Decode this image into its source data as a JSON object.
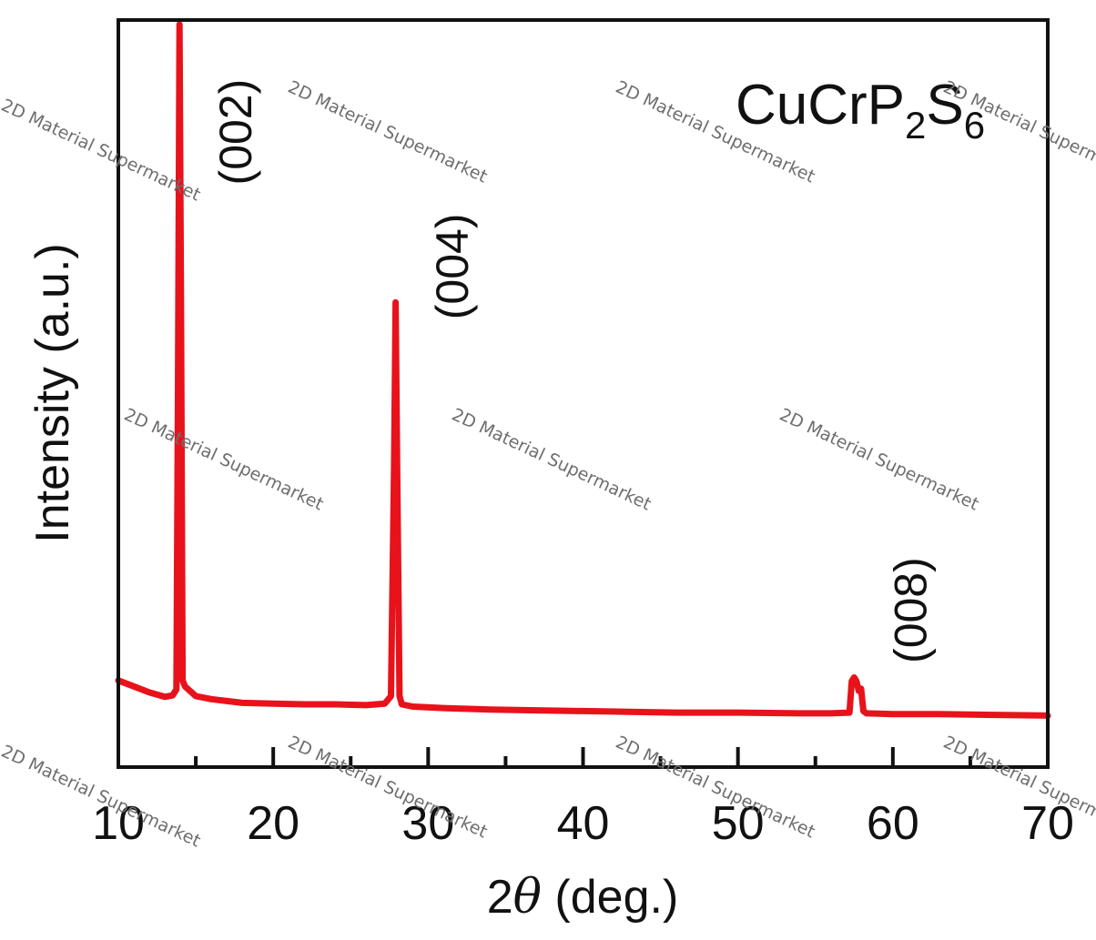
{
  "chart_data": {
    "type": "line",
    "title": "",
    "xlabel_prefix": "2",
    "xlabel_symbol": "θ",
    "xlabel_suffix": " (deg.)",
    "ylabel": "Intensity (a.u.)",
    "xlim": [
      10,
      70
    ],
    "ylim": [
      0,
      100
    ],
    "grid": false,
    "x_major_ticks": [
      10,
      20,
      30,
      40,
      50,
      60,
      70
    ],
    "x_minor_ticks": [
      15,
      25,
      35,
      45,
      55,
      65
    ],
    "x_tick_labels": [
      "10",
      "20",
      "30",
      "40",
      "50",
      "60",
      "70"
    ],
    "series": [
      {
        "color": "#e8121b",
        "x": [
          10,
          11,
          12,
          13,
          13.5,
          13.75,
          13.85,
          13.95,
          14.05,
          14.15,
          14.3,
          15,
          16,
          18,
          20,
          22,
          24,
          26,
          27.2,
          27.6,
          27.8,
          27.9,
          28.0,
          28.15,
          28.3,
          29,
          31,
          34,
          37,
          40,
          43,
          46,
          50,
          54,
          56,
          57.2,
          57.35,
          57.5,
          57.65,
          57.8,
          57.95,
          58.1,
          58.3,
          60,
          63,
          66,
          70
        ],
        "y": [
          11.6,
          10.8,
          10.0,
          9.4,
          9.6,
          10.4,
          50,
          99.4,
          60,
          11.6,
          10.8,
          9.5,
          9.1,
          8.6,
          8.5,
          8.4,
          8.4,
          8.3,
          8.5,
          9.5,
          40,
          62.2,
          40,
          9.5,
          8.4,
          8.1,
          7.9,
          7.7,
          7.6,
          7.5,
          7.4,
          7.3,
          7.3,
          7.2,
          7.2,
          7.3,
          11.5,
          12.0,
          11.5,
          10.2,
          10.5,
          7.5,
          7.2,
          7.1,
          7.1,
          7.0,
          6.9
        ]
      }
    ],
    "annotations": [
      {
        "text": "(002)",
        "x": 14.1,
        "y": 85
      },
      {
        "text": "(004)",
        "x": 28.1,
        "y": 67
      },
      {
        "text": "(008)",
        "x": 57.7,
        "y": 21
      }
    ],
    "compound_label": {
      "main": "CuCrP",
      "sub1": "2",
      "mid": "S",
      "sub2": "6"
    }
  },
  "watermark_text": "2D Material Supermarket"
}
